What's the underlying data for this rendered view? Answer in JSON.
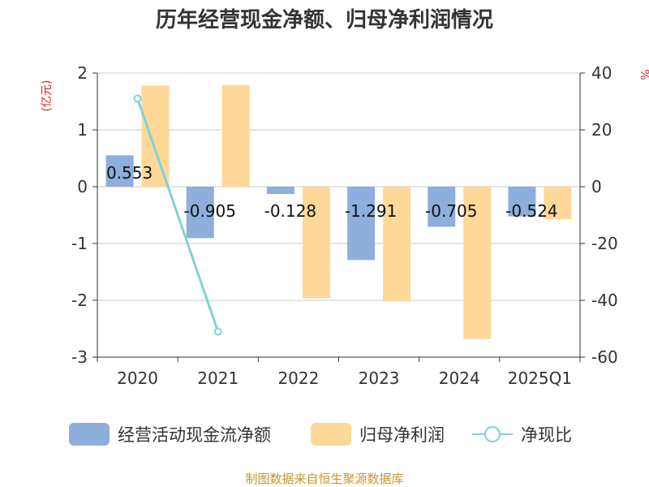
{
  "chart_data": {
    "type": "bar",
    "title": "历年经营现金净额、归母净利润情况",
    "categories": [
      "2020",
      "2021",
      "2022",
      "2023",
      "2024",
      "2025Q1"
    ],
    "left_axis": {
      "unit": "(亿元)",
      "ylim": [
        -3,
        2
      ],
      "ticks": [
        2,
        1,
        0,
        -1,
        -2,
        -3
      ]
    },
    "right_axis": {
      "unit": "%",
      "ylim": [
        -60,
        40
      ],
      "ticks": [
        40,
        20,
        0,
        -20,
        -40,
        -60
      ]
    },
    "series": [
      {
        "name": "经营活动现金流净额",
        "type": "bar",
        "axis": "left",
        "color": "#8eaedb",
        "values": [
          0.553,
          -0.905,
          -0.128,
          -1.291,
          -0.705,
          -0.524
        ],
        "labels": [
          "0.553",
          "-0.905",
          "-0.128",
          "-1.291",
          "-0.705",
          "-0.524"
        ]
      },
      {
        "name": "归母净利润",
        "type": "bar",
        "axis": "left",
        "color": "#fed898",
        "values": [
          1.78,
          1.79,
          -1.96,
          -2.02,
          -2.68,
          -0.57
        ]
      },
      {
        "name": "净现比",
        "type": "line",
        "axis": "right",
        "color": "#7fd3d6",
        "values": [
          31,
          -51,
          null,
          null,
          null,
          null
        ]
      }
    ],
    "grid": true,
    "legend_position": "bottom"
  },
  "source": "制图数据来自恒生聚源数据库"
}
